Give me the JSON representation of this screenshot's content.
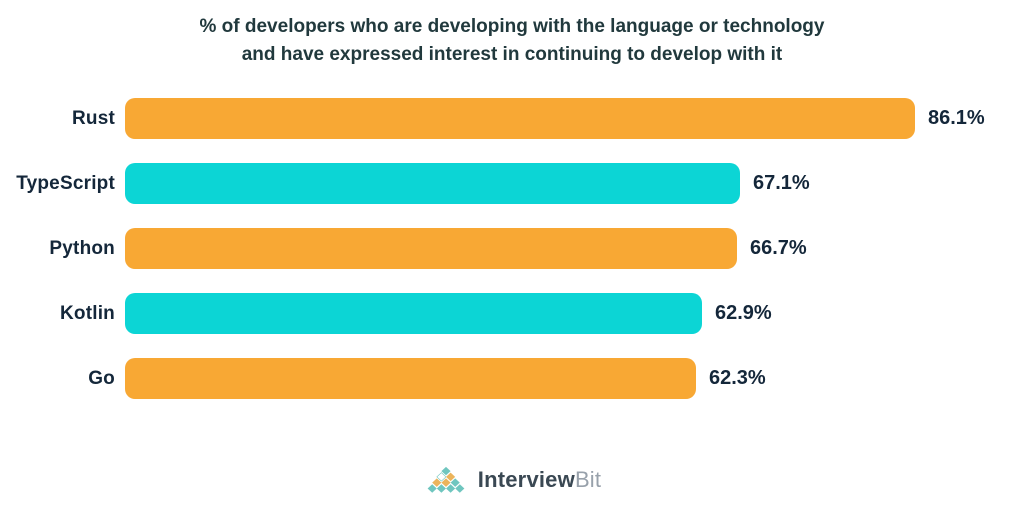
{
  "chart_data": {
    "type": "bar",
    "orientation": "horizontal",
    "title": "% of developers who are developing with the language or technology and have expressed interest in continuing to develop with it",
    "categories": [
      "Rust",
      "TypeScript",
      "Python",
      "Kotlin",
      "Go"
    ],
    "values": [
      86.1,
      67.1,
      66.7,
      62.9,
      62.3
    ],
    "value_labels": [
      "86.1%",
      "67.1%",
      "66.7%",
      "62.9%",
      "62.3%"
    ],
    "bar_color_names": [
      "orange",
      "cyan",
      "orange",
      "cyan",
      "orange"
    ],
    "xlim": [
      0,
      100
    ],
    "grid": false,
    "legend": false,
    "xlabel": "",
    "ylabel": ""
  },
  "footer": {
    "logo_icon": "interviewbit-pyramid-icon",
    "logo_text_primary": "Interview",
    "logo_text_secondary": "Bit"
  },
  "colors": {
    "bar_orange": "#F8A834",
    "bar_cyan": "#0CD5D5",
    "title_text": "#21393D",
    "label_text": "#14273A",
    "logo_teal": "#6FC6BF",
    "logo_orange": "#EBB45C",
    "logo_text_primary": "#3A4853",
    "logo_text_secondary": "#98A1AB"
  }
}
